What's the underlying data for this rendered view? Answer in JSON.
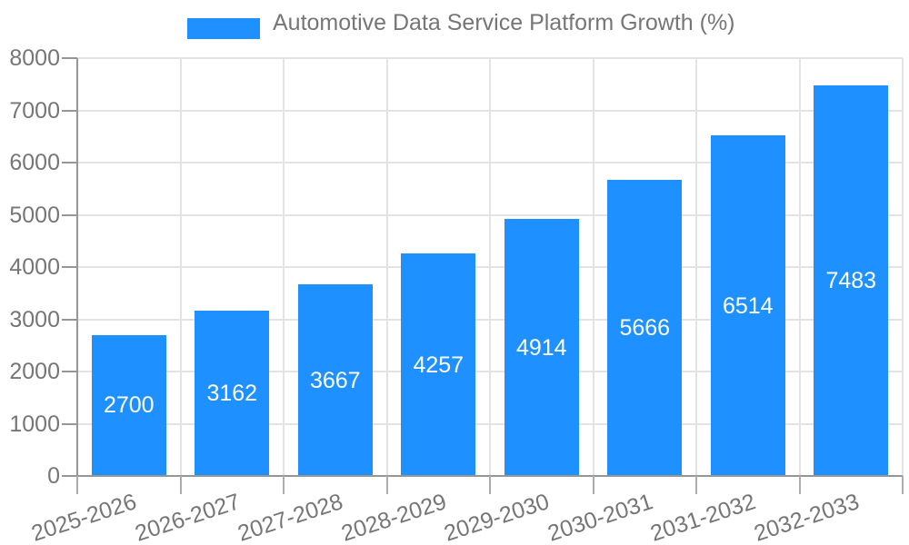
{
  "legend": {
    "label": "Automotive Data Service Platform Growth (%)"
  },
  "chart_data": {
    "type": "bar",
    "title": "Automotive Data Service Platform Growth (%)",
    "series_name": "Automotive Data Service Platform Growth (%)",
    "categories": [
      "2025-2026",
      "2026-2027",
      "2027-2028",
      "2028-2029",
      "2029-2030",
      "2030-2031",
      "2031-2032",
      "2032-2033"
    ],
    "values": [
      2700,
      3162,
      3667,
      4257,
      4914,
      5666,
      6514,
      7483
    ],
    "yticks": [
      0,
      1000,
      2000,
      3000,
      4000,
      5000,
      6000,
      7000,
      8000
    ],
    "ylim": [
      0,
      8000
    ],
    "xlabel": "",
    "ylabel": "",
    "grid": true,
    "legend_position": "top-center",
    "x_label_rotation_deg": -18,
    "colors": {
      "bar": "#1E90FF",
      "grid": "#E3E3E3",
      "axis": "#969696",
      "tick": "#ADADAD",
      "label": "#767676",
      "value_label": "#FFFFFF"
    }
  }
}
